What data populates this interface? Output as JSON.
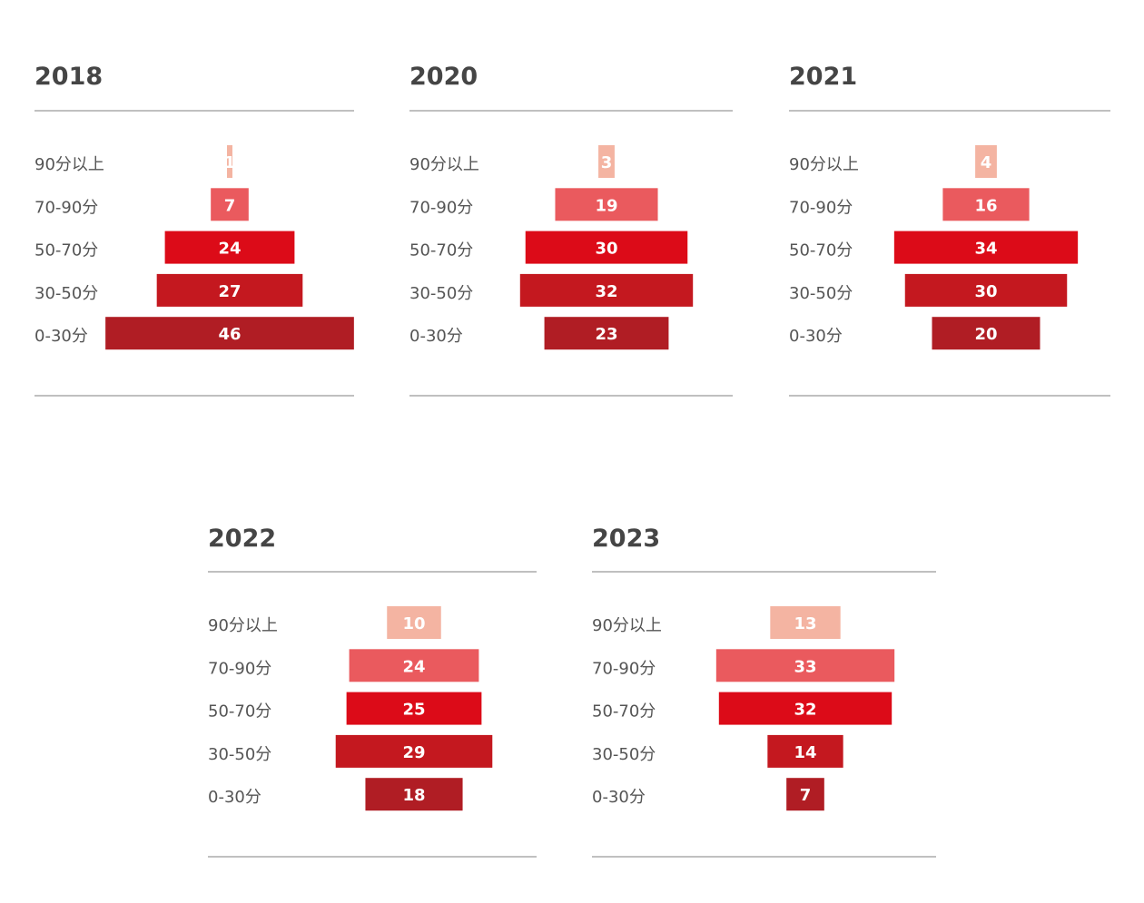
{
  "colors": {
    "90分以上": "#f4b4a2",
    "70-90分": "#ea5a5e",
    "50-70分": "#dc0b18",
    "30-50分": "#c4181f",
    "0-30分": "#b01d24",
    "title": "#454545",
    "label": "#555555",
    "rule": "#9a9a9a"
  },
  "chart_data": [
    {
      "type": "bar",
      "title": "2018",
      "categories": [
        "90分以上",
        "70-90分",
        "50-70分",
        "30-50分",
        "0-30分"
      ],
      "values": [
        1,
        7,
        24,
        27,
        46
      ]
    },
    {
      "type": "bar",
      "title": "2020",
      "categories": [
        "90分以上",
        "70-90分",
        "50-70分",
        "30-50分",
        "0-30分"
      ],
      "values": [
        3,
        19,
        30,
        32,
        23
      ]
    },
    {
      "type": "bar",
      "title": "2021",
      "categories": [
        "90分以上",
        "70-90分",
        "50-70分",
        "30-50分",
        "0-30分"
      ],
      "values": [
        4,
        16,
        34,
        30,
        20
      ]
    },
    {
      "type": "bar",
      "title": "2022",
      "categories": [
        "90分以上",
        "70-90分",
        "50-70分",
        "30-50分",
        "0-30分"
      ],
      "values": [
        10,
        24,
        25,
        29,
        18
      ]
    },
    {
      "type": "bar",
      "title": "2023",
      "categories": [
        "90分以上",
        "70-90分",
        "50-70分",
        "30-50分",
        "0-30分"
      ],
      "values": [
        13,
        33,
        32,
        14,
        7
      ]
    }
  ]
}
